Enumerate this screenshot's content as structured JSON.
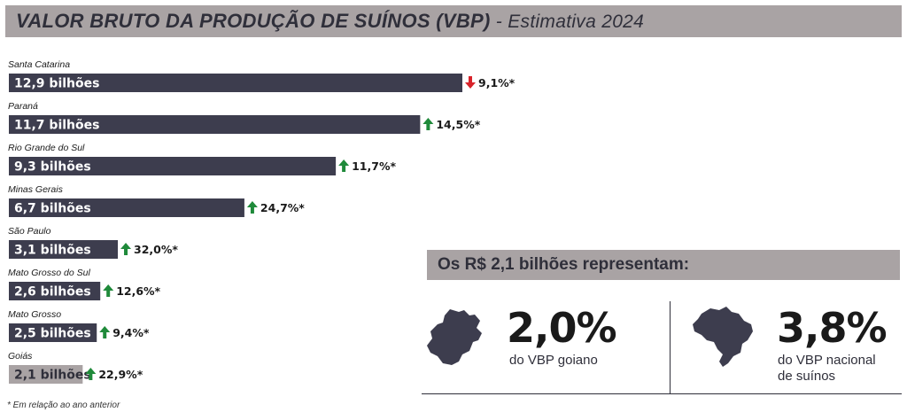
{
  "title": {
    "main": "VALOR BRUTO DA PRODUÇÃO DE SUÍNOS (VBP)",
    "sub": " - Estimativa 2024"
  },
  "chart_data": {
    "type": "bar",
    "orientation": "horizontal",
    "categories": [
      "Santa Catarina",
      "Paraná",
      "Rio Grande do Sul",
      "Minas Gerais",
      "São Paulo",
      "Mato Grosso do Sul",
      "Mato Grosso",
      "Goiás"
    ],
    "values": [
      12.9,
      11.7,
      9.3,
      6.7,
      3.1,
      2.6,
      2.5,
      2.1
    ],
    "value_labels": [
      "12,9 bilhões",
      "11,7 bilhões",
      "9,3 bilhões",
      "6,7 bilhões",
      "3,1 bilhões",
      "2,6 bilhões",
      "2,5 bilhões",
      "2,1 bilhões"
    ],
    "change_labels": [
      "9,1%*",
      "14,5%*",
      "11,7%*",
      "24,7%*",
      "32,0%*",
      "12,6%*",
      "9,4%*",
      "22,9%*"
    ],
    "change_direction": [
      "down",
      "up",
      "up",
      "up",
      "up",
      "up",
      "up",
      "up"
    ],
    "highlight": "Goiás",
    "colors": {
      "bar": "#3d3d4e",
      "highlight_bar": "#a9a3a4",
      "up": "#1f8a3a",
      "down": "#d8232a"
    }
  },
  "footnote": "* Em relação ao ano anterior",
  "representation": {
    "title": "Os R$ 2,1 bilhões representam:",
    "stats": [
      {
        "value": "2,0%",
        "line1": "do VBP goiano",
        "line2": "",
        "icon": "goias-map-icon"
      },
      {
        "value": "3,8%",
        "line1": "do VBP nacional",
        "line2": "de suínos",
        "icon": "brazil-map-icon"
      }
    ]
  }
}
